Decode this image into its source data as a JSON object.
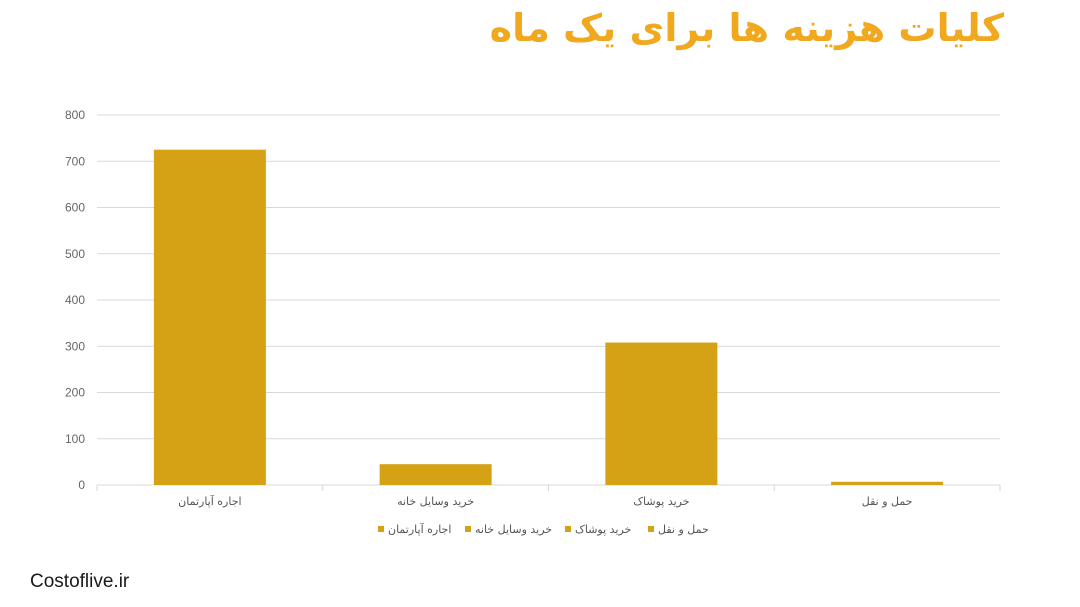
{
  "title": "کلیات هزینه ها برای یک ماه",
  "footer": "Costoflive.ir",
  "colors": {
    "title": "#f0a81e",
    "bar": "#d4a214",
    "grid": "#d9d9d9"
  },
  "chart_data": {
    "type": "bar",
    "categories": [
      "اجاره آپارتمان",
      "خرید وسایل خانه",
      "خرید پوشاک",
      "حمل و نقل"
    ],
    "values": [
      725,
      45,
      308,
      7
    ],
    "ylim": [
      0,
      800
    ],
    "yticks": [
      0,
      100,
      200,
      300,
      400,
      500,
      600,
      700,
      800
    ],
    "legend": [
      "اجاره آپارتمان",
      "خرید وسایل خانه",
      "خرید پوشاک",
      "حمل و نقل"
    ],
    "legend_position": "bottom",
    "grid": true
  }
}
